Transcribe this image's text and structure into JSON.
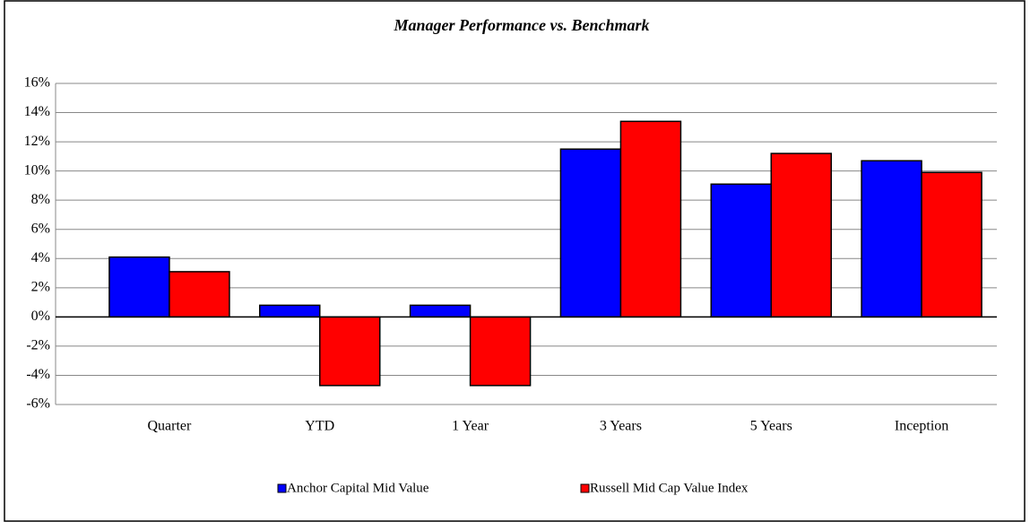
{
  "chart_data": {
    "type": "bar",
    "title": "Manager Performance vs. Benchmark",
    "categories": [
      "Quarter",
      "YTD",
      "1 Year",
      "3 Years",
      "5 Years",
      "Inception"
    ],
    "series": [
      {
        "name": "Anchor Capital Mid Value",
        "color": "#0000ff",
        "values": [
          4.1,
          0.8,
          0.8,
          11.5,
          9.1,
          10.7
        ]
      },
      {
        "name": "Russell Mid Cap Value Index",
        "color": "#ff0000",
        "values": [
          3.1,
          -4.7,
          -4.7,
          13.4,
          11.2,
          9.9
        ]
      }
    ],
    "ylim": [
      -6,
      16
    ],
    "yticks": [
      {
        "value": -6,
        "label": "-6%"
      },
      {
        "value": -4,
        "label": "-4%"
      },
      {
        "value": -2,
        "label": "-2%"
      },
      {
        "value": 0,
        "label": "0%"
      },
      {
        "value": 2,
        "label": "2%"
      },
      {
        "value": 4,
        "label": "4%"
      },
      {
        "value": 6,
        "label": "6%"
      },
      {
        "value": 8,
        "label": "8%"
      },
      {
        "value": 10,
        "label": "10%"
      },
      {
        "value": 12,
        "label": "12%"
      },
      {
        "value": 14,
        "label": "14%"
      },
      {
        "value": 16,
        "label": "16%"
      }
    ],
    "grid": true,
    "legend": "bottom"
  }
}
